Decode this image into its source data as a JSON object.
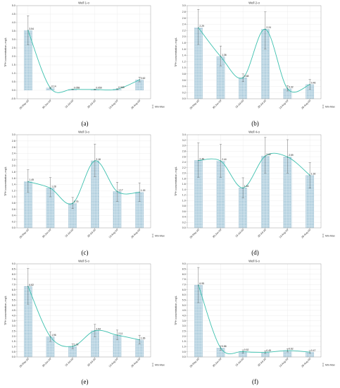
{
  "colors": {
    "bar_fill": "#dcebf2",
    "bar_dots": "#4e8fb0",
    "curve": "#3cc0ae",
    "error_bar": "#555555",
    "frame": "#999999"
  },
  "legend_label": "Min-Max",
  "chart_data": [
    {
      "type": "bar",
      "panel_letter": "(a)",
      "title": "Well 1-o",
      "ylabel": "TPH concentration, mg/L",
      "categories": [
        "28-May-20",
        "30-Jun-20",
        "15-Jul-20",
        "30-Jul-20",
        "13-Aug-20",
        "28-Aug-20"
      ],
      "values": [
        3.54,
        0.14,
        0.058,
        0.05,
        0.065,
        0.62
      ],
      "value_labels": [
        "3.54",
        "0.14",
        "0.058",
        "0.050",
        "0.065",
        "0.62"
      ],
      "min": [
        2.7,
        0.1,
        0.04,
        0.03,
        0.04,
        0.5
      ],
      "max": [
        4.4,
        0.18,
        0.07,
        0.07,
        0.09,
        0.78
      ],
      "ylim": [
        -0.5,
        5.0
      ],
      "yticks": [
        "-0.5",
        "0.0",
        "0.5",
        "1.0",
        "1.5",
        "2.0",
        "2.5",
        "3.0",
        "3.5",
        "4.0",
        "4.5",
        "5.0"
      ],
      "grid": true,
      "legend": "right",
      "series_style": "bars with min-max error bars and smoothed curve"
    },
    {
      "type": "bar",
      "panel_letter": "(b)",
      "title": "Well 2-o",
      "ylabel": "TPH concentration, mg/L",
      "categories": [
        "28-May-20",
        "30-Jun-20",
        "15-Jul-20",
        "30-Jul-20",
        "13-Aug-20",
        "28-Aug-20"
      ],
      "values": [
        2.29,
        1.36,
        0.68,
        2.24,
        0.32,
        0.46
      ],
      "value_labels": [
        "2.29",
        "1.36",
        "0.68",
        "2.24",
        "0.32",
        "0.46"
      ],
      "min": [
        1.75,
        1.05,
        0.55,
        1.6,
        0.25,
        0.3
      ],
      "max": [
        2.88,
        1.7,
        0.8,
        2.8,
        0.42,
        0.62
      ],
      "ylim": [
        0.0,
        3.0
      ],
      "yticks": [
        "0.0",
        "0.2",
        "0.4",
        "0.6",
        "0.8",
        "1.0",
        "1.2",
        "1.4",
        "1.6",
        "1.8",
        "2.0",
        "2.2",
        "2.4",
        "2.6",
        "2.8",
        "3.0"
      ],
      "grid": true,
      "legend": "right",
      "series_style": "bars with min-max error bars and smoothed curve"
    },
    {
      "type": "bar",
      "panel_letter": "(c)",
      "title": "Well 3-o",
      "ylabel": "TPH concentration, mg/L",
      "categories": [
        "28-May-20",
        "30-Jun-20",
        "15-Jul-20",
        "30-Jul-20",
        "13-Aug-20",
        "28-Aug-20"
      ],
      "values": [
        1.49,
        1.28,
        0.79,
        2.16,
        1.17,
        1.15
      ],
      "value_labels": [
        "1.49",
        "1.28",
        "0.79",
        "2.16",
        "1.17",
        "1.15"
      ],
      "min": [
        1.15,
        1.0,
        0.62,
        1.65,
        0.85,
        0.85
      ],
      "max": [
        1.87,
        1.62,
        0.98,
        2.7,
        1.47,
        1.45
      ],
      "ylim": [
        0.0,
        3.0
      ],
      "yticks": [
        "0.0",
        "0.2",
        "0.4",
        "0.6",
        "0.8",
        "1.0",
        "1.2",
        "1.4",
        "1.6",
        "1.8",
        "2.0",
        "2.2",
        "2.4",
        "2.6",
        "2.8",
        "3.0"
      ],
      "grid": true,
      "legend": "right",
      "series_style": "bars with min-max error bars and smoothed curve"
    },
    {
      "type": "bar",
      "panel_letter": "(d)",
      "title": "Well 4-o",
      "ylabel": "TPH concentration, mg/L",
      "categories": [
        "28-May-20",
        "30-Jun-20",
        "15-Jul-20",
        "30-Jul-20",
        "13-Aug-20",
        "28-Aug-20"
      ],
      "values": [
        2.46,
        2.44,
        1.46,
        2.62,
        2.59,
        1.92
      ],
      "value_labels": [
        "2.46",
        "2.44",
        "1.46",
        "2.62",
        "2.59",
        "1.92"
      ],
      "min": [
        1.85,
        1.85,
        1.1,
        2.0,
        2.0,
        1.45
      ],
      "max": [
        3.1,
        3.05,
        1.83,
        3.3,
        3.22,
        2.38
      ],
      "ylim": [
        0.0,
        3.4
      ],
      "yticks": [
        "0.0",
        "0.2",
        "0.4",
        "0.6",
        "0.8",
        "1.0",
        "1.2",
        "1.4",
        "1.6",
        "1.8",
        "2.0",
        "2.2",
        "2.4",
        "2.6",
        "2.8",
        "3.0",
        "3.2",
        "3.4"
      ],
      "grid": true,
      "legend": "right",
      "series_style": "bars with min-max error bars and smoothed curve"
    },
    {
      "type": "bar",
      "panel_letter": "(e)",
      "title": "Well 5-o",
      "ylabel": "TPH concentration, mg/L",
      "categories": [
        "28-May-20",
        "30-Jun-20",
        "15-Jul-20",
        "30-Jul-20",
        "13-Aug-20",
        "28-Aug-20"
      ],
      "values": [
        6.82,
        1.96,
        1.03,
        2.54,
        2.11,
        1.66
      ],
      "value_labels": [
        "6.82",
        "1.96",
        "1.03",
        "2.54",
        "2.11",
        "1.66"
      ],
      "min": [
        5.1,
        1.5,
        0.8,
        1.95,
        1.65,
        1.25
      ],
      "max": [
        8.55,
        2.42,
        1.28,
        3.15,
        2.6,
        2.1
      ],
      "ylim": [
        0.0,
        9.0
      ],
      "yticks": [
        "0.0",
        "0.5",
        "1.0",
        "1.5",
        "2.0",
        "2.5",
        "3.0",
        "3.5",
        "4.0",
        "4.5",
        "5.0",
        "5.5",
        "6.0",
        "6.5",
        "7.0",
        "7.5",
        "8.0",
        "8.5",
        "9.0"
      ],
      "grid": true,
      "legend": "right",
      "series_style": "bars with min-max error bars and smoothed curve"
    },
    {
      "type": "bar",
      "panel_letter": "(f)",
      "title": "Well 6-o",
      "ylabel": "TPH concentration, mg/L",
      "categories": [
        "28-May-20",
        "30-Jun-20",
        "15-Jul-20",
        "30-Jul-20",
        "13-Aug-20",
        "28-Aug-20"
      ],
      "values": [
        6.95,
        0.86,
        0.52,
        0.45,
        0.62,
        0.47
      ],
      "value_labels": [
        "6.95",
        "0.86",
        "0.52",
        "0.45",
        "0.62",
        "0.47"
      ],
      "min": [
        5.25,
        0.65,
        0.38,
        0.32,
        0.48,
        0.33
      ],
      "max": [
        8.65,
        1.08,
        0.68,
        0.6,
        0.8,
        0.62
      ],
      "ylim": [
        0.0,
        9.0
      ],
      "yticks": [
        "0.0",
        "0.5",
        "1.0",
        "1.5",
        "2.0",
        "2.5",
        "3.0",
        "3.5",
        "4.0",
        "4.5",
        "5.0",
        "5.5",
        "6.0",
        "6.5",
        "7.0",
        "7.5",
        "8.0",
        "8.5",
        "9.0"
      ],
      "grid": true,
      "legend": "right",
      "series_style": "bars with min-max error bars and smoothed curve"
    }
  ]
}
